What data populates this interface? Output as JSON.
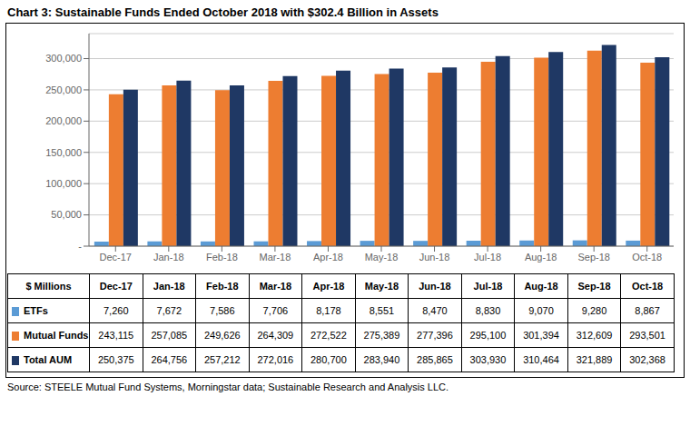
{
  "chart_data": {
    "type": "bar",
    "title": "Chart 3:  Sustainable Funds Ended October 2018 with $302.4 Billion in Assets",
    "categories": [
      "Dec-17",
      "Jan-18",
      "Feb-18",
      "Mar-18",
      "Apr-18",
      "May-18",
      "Jun-18",
      "Jul-18",
      "Aug-18",
      "Sep-18",
      "Oct-18"
    ],
    "series": [
      {
        "name": "ETFs",
        "color": "#5b9bd5",
        "values": [
          7260,
          7672,
          7586,
          7706,
          8178,
          8551,
          8470,
          8830,
          9070,
          9280,
          8867
        ],
        "value_labels": [
          "7,260",
          "7,672",
          "7,586",
          "7,706",
          "8,178",
          "8,551",
          "8,470",
          "8,830",
          "9,070",
          "9,280",
          "8,867"
        ]
      },
      {
        "name": "Mutual Funds",
        "color": "#ed7d31",
        "values": [
          243115,
          257085,
          249626,
          264309,
          272522,
          275389,
          277396,
          295100,
          301394,
          312609,
          293501
        ],
        "value_labels": [
          "243,115",
          "257,085",
          "249,626",
          "264,309",
          "272,522",
          "275,389",
          "277,396",
          "295,100",
          "301,394",
          "312,609",
          "293,501"
        ]
      },
      {
        "name": "Total AUM",
        "color": "#1f3864",
        "values": [
          250375,
          264756,
          257212,
          272016,
          280700,
          283940,
          285865,
          303930,
          310464,
          321889,
          302368
        ],
        "value_labels": [
          "250,375",
          "264,756",
          "257,212",
          "272,016",
          "280,700",
          "283,940",
          "285,865",
          "303,930",
          "310,464",
          "321,889",
          "302,368"
        ]
      }
    ],
    "ylim": [
      0,
      340000
    ],
    "yticks": [
      {
        "value": 0,
        "label": "-"
      },
      {
        "value": 50000,
        "label": "50,000"
      },
      {
        "value": 100000,
        "label": "100,000"
      },
      {
        "value": 150000,
        "label": "150,000"
      },
      {
        "value": 200000,
        "label": "200,000"
      },
      {
        "value": 250000,
        "label": "250,000"
      },
      {
        "value": 300000,
        "label": "300,000"
      }
    ],
    "grid": true,
    "annotations": [
      "$ Millions",
      "Source:  STEELE Mutual Fund Systems, Morningstar data; Sustainable Research and Analysis LLC."
    ]
  }
}
